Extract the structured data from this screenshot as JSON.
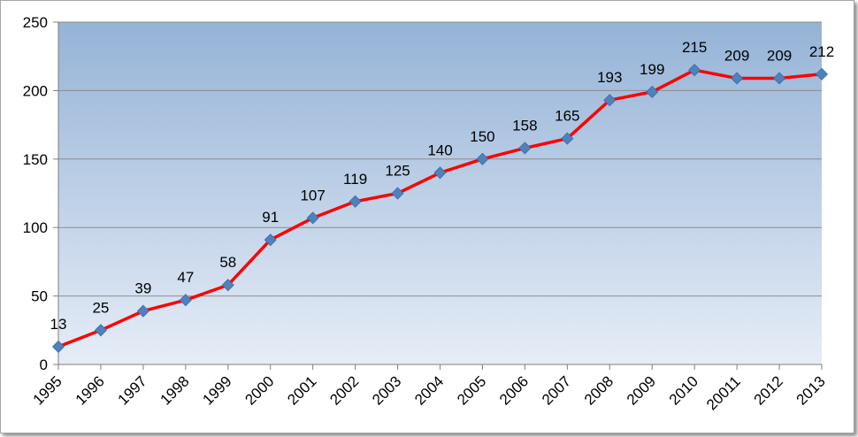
{
  "chart_data": {
    "type": "line",
    "title": "",
    "xlabel": "",
    "ylabel": "",
    "categories": [
      "1995",
      "1996",
      "1997",
      "1998",
      "1999",
      "2000",
      "2001",
      "2002",
      "2003",
      "2004",
      "2005",
      "2006",
      "2007",
      "2008",
      "2009",
      "2010",
      "20011",
      "2012",
      "2013"
    ],
    "series": [
      {
        "values": [
          13,
          25,
          39,
          47,
          58,
          91,
          107,
          119,
          125,
          140,
          150,
          158,
          165,
          193,
          199,
          215,
          209,
          209,
          212
        ]
      }
    ],
    "ylim": [
      0,
      250
    ],
    "yticks": [
      0,
      50,
      100,
      150,
      200,
      250
    ],
    "grid": true,
    "legend": "none",
    "data_labels": true,
    "colors": {
      "line": "#ff0000",
      "marker": "#4f81bd",
      "plot_bg_top": "#95b3d7",
      "plot_bg_bottom": "#e6edf7",
      "gridline": "#8c8c8c",
      "axis": "#7f7f7f"
    }
  }
}
